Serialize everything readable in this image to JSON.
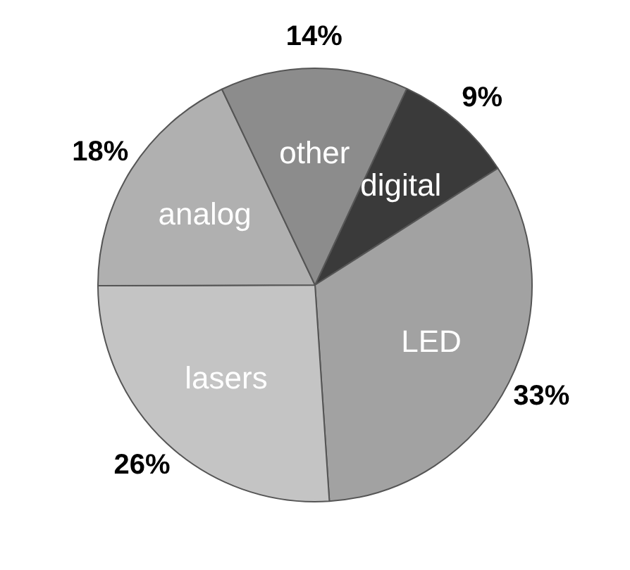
{
  "chart_data": {
    "type": "pie",
    "categories": [
      "digital",
      "LED",
      "lasers",
      "analog",
      "other"
    ],
    "values": [
      9,
      33,
      26,
      18,
      14
    ],
    "value_labels": [
      "9%",
      "33%",
      "26%",
      "18%",
      "14%"
    ],
    "colors": [
      "#3a3a3a",
      "#a2a2a2",
      "#c4c4c4",
      "#b0b0b0",
      "#8c8c8c"
    ]
  }
}
